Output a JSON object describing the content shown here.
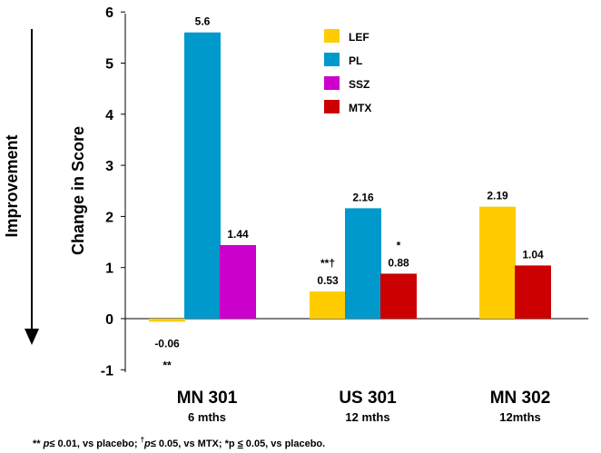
{
  "chart_data": {
    "type": "bar",
    "ylabel": "Change in Score",
    "side_label": "Improvement",
    "ylim": [
      -1,
      6
    ],
    "yticks": [
      -1,
      0,
      1,
      2,
      3,
      4,
      5,
      6
    ],
    "groups": [
      {
        "label": "MN 301",
        "sub": "6 mths",
        "bars": [
          {
            "series": "LEF",
            "value": -0.06,
            "label": "-0.06",
            "note": "**"
          },
          {
            "series": "PL",
            "value": 5.6,
            "label": "5.6"
          },
          {
            "series": "SSZ",
            "value": 1.44,
            "label": "1.44"
          }
        ]
      },
      {
        "label": "US 301",
        "sub": "12 mths",
        "bars": [
          {
            "series": "LEF",
            "value": 0.53,
            "label": "0.53",
            "note": "**†"
          },
          {
            "series": "PL",
            "value": 2.16,
            "label": "2.16"
          },
          {
            "series": "MTX",
            "value": 0.88,
            "label": "0.88",
            "note": "*"
          }
        ]
      },
      {
        "label": "MN 302",
        "sub": "12mths",
        "bars": [
          {
            "series": "LEF",
            "value": 2.19,
            "label": "2.19"
          },
          {
            "series": "MTX",
            "value": 1.04,
            "label": "1.04"
          }
        ]
      }
    ],
    "legend": [
      {
        "name": "LEF",
        "color": "#ffcc00"
      },
      {
        "name": "PL",
        "color": "#0099cc"
      },
      {
        "name": "SSZ",
        "color": "#cc00cc"
      },
      {
        "name": "MTX",
        "color": "#cc0000"
      }
    ],
    "footnote": {
      "p1": "p",
      "t1": " 0.01, vs placebo; ",
      "p2": "p",
      "t2": " 0.05, vs MTX; *p ",
      "t3": " 0.05, vs placebo.",
      "stars": "** ",
      "dagger": "†",
      "leq": "≤"
    }
  }
}
